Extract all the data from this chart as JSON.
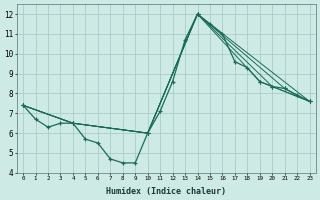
{
  "background_color": "#ceeae4",
  "grid_color": "#aacccc",
  "line_color": "#1a6b5a",
  "xlabel": "Humidex (Indice chaleur)",
  "xlim": [
    -0.5,
    23.5
  ],
  "ylim": [
    4,
    12.5
  ],
  "yticks": [
    4,
    5,
    6,
    7,
    8,
    9,
    10,
    11,
    12
  ],
  "xtick_labels": [
    "0",
    "1",
    "2",
    "3",
    "4",
    "5",
    "6",
    "7",
    "8",
    "9",
    "10",
    "11",
    "12",
    "13",
    "14",
    "15",
    "16",
    "17",
    "18",
    "19",
    "20",
    "21",
    "22",
    "23"
  ],
  "lines": [
    {
      "x": [
        0,
        1,
        2,
        3,
        4,
        5,
        6,
        7,
        8,
        9,
        10,
        11,
        12,
        13,
        14,
        15,
        16,
        17,
        18,
        19,
        20,
        21,
        22,
        23
      ],
      "y": [
        7.4,
        6.7,
        6.3,
        6.5,
        6.5,
        5.7,
        5.5,
        4.7,
        4.5,
        4.5,
        6.0,
        7.1,
        8.6,
        10.7,
        12.0,
        11.5,
        11.0,
        9.6,
        9.3,
        8.6,
        8.35,
        8.25,
        7.9,
        7.6
      ]
    },
    {
      "x": [
        0,
        4,
        10,
        14,
        19,
        23
      ],
      "y": [
        7.4,
        6.5,
        6.0,
        12.0,
        8.6,
        7.6
      ]
    },
    {
      "x": [
        0,
        4,
        10,
        14,
        20,
        23
      ],
      "y": [
        7.4,
        6.5,
        6.0,
        12.0,
        8.35,
        7.6
      ]
    },
    {
      "x": [
        0,
        4,
        10,
        14,
        21,
        23
      ],
      "y": [
        7.4,
        6.5,
        6.0,
        12.0,
        8.25,
        7.6
      ]
    },
    {
      "x": [
        0,
        4,
        10,
        14,
        23
      ],
      "y": [
        7.4,
        6.5,
        6.0,
        12.0,
        7.6
      ]
    }
  ]
}
